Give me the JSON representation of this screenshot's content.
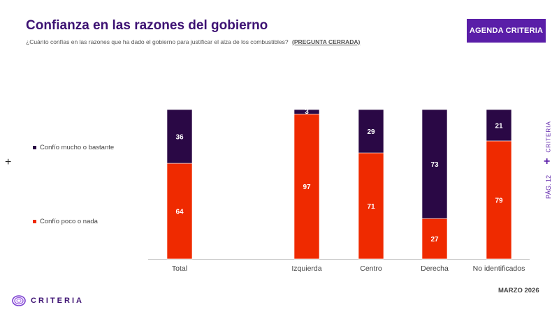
{
  "header": {
    "title": "Confianza en las razones del gobierno",
    "subtitle": "¿Cuánto confías en las razones que ha dado el gobierno para justificar el alza de los combustibles?",
    "subtitle_tag": "(PREGUNTA CERRADA)",
    "agenda_button": "AGENDA CRITERIA"
  },
  "side": {
    "brand": "CRITERIA",
    "page": "PÁG. 12",
    "plus_left": "+",
    "plus_right": "+"
  },
  "footer": {
    "date": "MARZO 2026",
    "logo_text": "CRITERIA",
    "logo_icon": "criteria-logo-icon"
  },
  "colors": {
    "accent": "#5a1ea8",
    "title": "#3d1273",
    "confio_mucho": "#2a0845",
    "confio_poco": "#ef2a00"
  },
  "chart_data": {
    "type": "bar",
    "stacked": true,
    "percent": true,
    "categories": [
      "Total",
      "Izquierda",
      "Centro",
      "Derecha",
      "No identificados"
    ],
    "series": [
      {
        "name": "Confío poco o nada",
        "values": [
          64,
          97,
          71,
          27,
          79
        ],
        "color": "#ef2a00"
      },
      {
        "name": "Confío mucho o bastante",
        "values": [
          36,
          3,
          29,
          73,
          21
        ],
        "color": "#2a0845"
      }
    ],
    "ylim": [
      0,
      100
    ],
    "legend": [
      "Confío mucho o bastante",
      "Confío poco o nada"
    ],
    "legend_position": "left"
  }
}
